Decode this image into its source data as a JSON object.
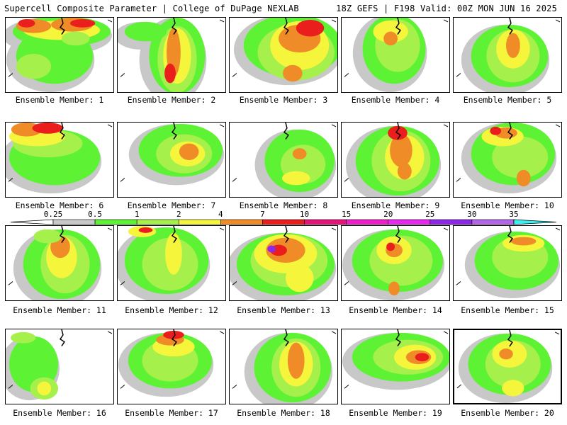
{
  "header": {
    "left": "Supercell Composite Parameter | College of DuPage NEXLAB",
    "right": "18Z GEFS | F198 Valid: 00Z MON JUN 16 2025"
  },
  "member_label_prefix": "Ensemble Member: ",
  "members": [
    1,
    2,
    3,
    4,
    5,
    6,
    7,
    8,
    9,
    10,
    11,
    12,
    13,
    14,
    15,
    16,
    17,
    18,
    19,
    20
  ],
  "selected_member": 20,
  "legend": {
    "ticks": [
      "0.25",
      "0.5",
      "1",
      "2",
      "4",
      "7",
      "10",
      "15",
      "20",
      "25",
      "30",
      "35"
    ],
    "colors": [
      "#c8c8c8",
      "#5ef235",
      "#a6f04b",
      "#f5f53c",
      "#f08c28",
      "#eb1e1e",
      "#e6147a",
      "#f01ec8",
      "#e628f0",
      "#8c28e6",
      "#b464e6",
      "#3cf0f0"
    ]
  }
}
